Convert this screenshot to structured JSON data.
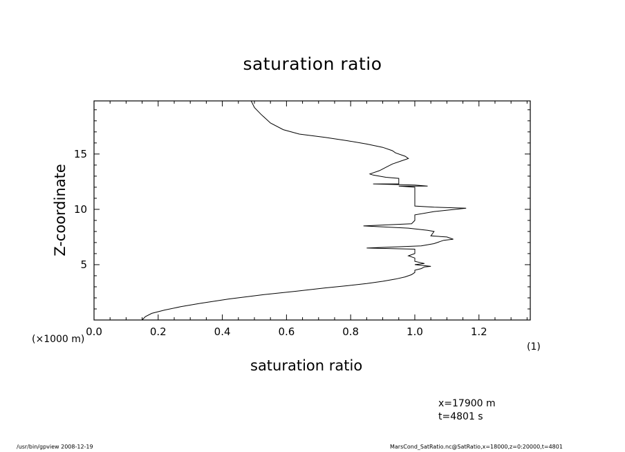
{
  "chart_data": {
    "type": "line",
    "title": "saturation ratio",
    "xlabel": "saturation ratio",
    "ylabel": "Z-coordinate",
    "x_unit_label": "(1)",
    "y_unit_label": "(×1000 m)",
    "xlim": [
      0.0,
      1.36
    ],
    "ylim": [
      0.0,
      19.8
    ],
    "x_ticks": [
      "0.0",
      "0.2",
      "0.4",
      "0.6",
      "0.8",
      "1.0",
      "1.2"
    ],
    "y_ticks": [
      "5",
      "10",
      "15"
    ],
    "grid": false,
    "series": [
      {
        "points": [
          [
            0.15,
            0.0
          ],
          [
            0.16,
            0.3
          ],
          [
            0.18,
            0.6
          ],
          [
            0.22,
            0.9
          ],
          [
            0.27,
            1.2
          ],
          [
            0.33,
            1.5
          ],
          [
            0.42,
            1.9
          ],
          [
            0.53,
            2.3
          ],
          [
            0.63,
            2.6
          ],
          [
            0.72,
            2.9
          ],
          [
            0.79,
            3.1
          ],
          [
            0.85,
            3.3
          ],
          [
            0.9,
            3.5
          ],
          [
            0.94,
            3.7
          ],
          [
            0.97,
            3.9
          ],
          [
            0.99,
            4.1
          ],
          [
            1.0,
            4.3
          ],
          [
            1.0,
            4.5
          ],
          [
            1.02,
            4.65
          ],
          [
            1.03,
            4.8
          ],
          [
            1.05,
            4.85
          ],
          [
            1.0,
            5.0
          ],
          [
            1.03,
            5.1
          ],
          [
            1.0,
            5.3
          ],
          [
            1.0,
            5.6
          ],
          [
            0.98,
            5.8
          ],
          [
            1.0,
            6.0
          ],
          [
            1.0,
            6.4
          ],
          [
            0.85,
            6.5
          ],
          [
            1.02,
            6.7
          ],
          [
            1.06,
            6.9
          ],
          [
            1.09,
            7.2
          ],
          [
            1.12,
            7.3
          ],
          [
            1.1,
            7.5
          ],
          [
            1.05,
            7.6
          ],
          [
            1.06,
            8.0
          ],
          [
            1.04,
            8.1
          ],
          [
            0.98,
            8.3
          ],
          [
            0.84,
            8.5
          ],
          [
            0.99,
            8.7
          ],
          [
            1.0,
            9.0
          ],
          [
            1.0,
            9.5
          ],
          [
            1.06,
            9.8
          ],
          [
            1.16,
            10.1
          ],
          [
            1.06,
            10.2
          ],
          [
            1.0,
            10.3
          ],
          [
            1.0,
            11.0
          ],
          [
            1.0,
            12.0
          ],
          [
            0.95,
            12.1
          ],
          [
            1.04,
            12.1
          ],
          [
            1.0,
            12.2
          ],
          [
            0.87,
            12.3
          ],
          [
            0.95,
            12.3
          ],
          [
            0.95,
            12.8
          ],
          [
            0.91,
            12.9
          ],
          [
            0.87,
            13.1
          ],
          [
            0.86,
            13.2
          ],
          [
            0.89,
            13.5
          ],
          [
            0.91,
            13.8
          ],
          [
            0.93,
            14.1
          ],
          [
            0.96,
            14.4
          ],
          [
            0.98,
            14.6
          ],
          [
            0.97,
            14.8
          ],
          [
            0.94,
            15.1
          ],
          [
            0.93,
            15.3
          ],
          [
            0.9,
            15.6
          ],
          [
            0.85,
            15.9
          ],
          [
            0.79,
            16.2
          ],
          [
            0.72,
            16.5
          ],
          [
            0.64,
            16.8
          ],
          [
            0.59,
            17.2
          ],
          [
            0.55,
            17.8
          ],
          [
            0.52,
            18.6
          ],
          [
            0.5,
            19.2
          ],
          [
            0.49,
            19.8
          ]
        ]
      }
    ]
  },
  "annotations": {
    "x_position": "x=17900 m",
    "time": "t=4801 s"
  },
  "footer": {
    "left": "/usr/bin/gpview   2008-12-19",
    "right": "MarsCond_SatRatio.nc@SatRatio,x=18000,z=0:20000,t=4801"
  }
}
